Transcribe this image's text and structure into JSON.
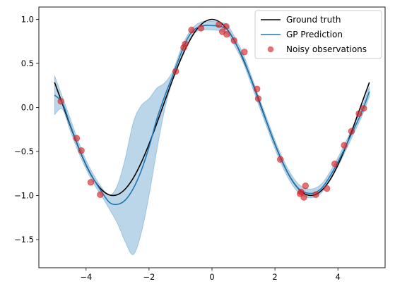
{
  "chart_data": {
    "type": "line",
    "title": "",
    "xlabel": "",
    "ylabel": "",
    "xlim": [
      -5.5,
      5.5
    ],
    "ylim": [
      -1.82,
      1.14
    ],
    "x_ticks": [
      -4,
      -2,
      0,
      2,
      4
    ],
    "y_ticks": [
      -1.5,
      -1.0,
      -0.5,
      0.0,
      0.5,
      1.0
    ],
    "x_tick_labels": [
      "−4",
      "−2",
      "0",
      "2",
      "4"
    ],
    "y_tick_labels": [
      "−1.5",
      "−1.0",
      "−0.5",
      "0.0",
      "0.5",
      "1.0"
    ],
    "grid": false,
    "legend_position": "top-right",
    "legend": [
      "Ground truth",
      "GP Prediction",
      "Noisy observations"
    ],
    "series": [
      {
        "name": "Ground truth",
        "kind": "line",
        "color": "#000000",
        "x": [
          -5.0,
          -4.75,
          -4.5,
          -4.25,
          -4.0,
          -3.75,
          -3.5,
          -3.25,
          -3.0,
          -2.75,
          -2.5,
          -2.25,
          -2.0,
          -1.75,
          -1.5,
          -1.25,
          -1.0,
          -0.75,
          -0.5,
          -0.25,
          0.0,
          0.25,
          0.5,
          0.75,
          1.0,
          1.25,
          1.5,
          1.75,
          2.0,
          2.25,
          2.5,
          2.75,
          3.0,
          3.25,
          3.5,
          3.75,
          4.0,
          4.25,
          4.5,
          4.75,
          5.0
        ],
        "y": [
          0.284,
          0.038,
          -0.211,
          -0.446,
          -0.654,
          -0.821,
          -0.936,
          -0.994,
          -0.99,
          -0.924,
          -0.801,
          -0.628,
          -0.416,
          -0.178,
          0.071,
          0.315,
          0.54,
          0.732,
          0.878,
          0.969,
          1.0,
          0.969,
          0.878,
          0.732,
          0.54,
          0.315,
          0.071,
          -0.178,
          -0.416,
          -0.628,
          -0.801,
          -0.924,
          -0.99,
          -0.994,
          -0.936,
          -0.821,
          -0.654,
          -0.446,
          -0.211,
          0.038,
          0.284
        ]
      },
      {
        "name": "GP Prediction",
        "kind": "line",
        "color": "#1f77b4",
        "x": [
          -5.0,
          -4.75,
          -4.5,
          -4.25,
          -4.0,
          -3.75,
          -3.5,
          -3.25,
          -3.0,
          -2.75,
          -2.5,
          -2.25,
          -2.0,
          -1.75,
          -1.5,
          -1.25,
          -1.0,
          -0.75,
          -0.5,
          -0.25,
          0.0,
          0.25,
          0.5,
          0.75,
          1.0,
          1.25,
          1.5,
          1.75,
          2.0,
          2.25,
          2.5,
          2.75,
          3.0,
          3.25,
          3.5,
          3.75,
          4.0,
          4.25,
          4.5,
          4.75,
          5.0
        ],
        "y": [
          0.14,
          0.05,
          -0.2,
          -0.44,
          -0.65,
          -0.82,
          -0.96,
          -1.08,
          -1.1,
          -1.05,
          -0.92,
          -0.72,
          -0.45,
          -0.13,
          0.13,
          0.36,
          0.6,
          0.8,
          0.9,
          0.93,
          0.93,
          0.92,
          0.88,
          0.73,
          0.55,
          0.31,
          0.06,
          -0.18,
          -0.42,
          -0.63,
          -0.8,
          -0.92,
          -0.97,
          -0.97,
          -0.91,
          -0.78,
          -0.62,
          -0.44,
          -0.25,
          -0.06,
          0.18
        ]
      },
      {
        "name": "",
        "kind": "band",
        "color": "#1f77b4",
        "opacity": 0.3,
        "x": [
          -5.0,
          -4.75,
          -4.5,
          -4.25,
          -4.0,
          -3.75,
          -3.5,
          -3.25,
          -3.0,
          -2.75,
          -2.5,
          -2.25,
          -2.0,
          -1.75,
          -1.5,
          -1.25,
          -1.0,
          -0.75,
          -0.5,
          -0.25,
          0.0,
          0.25,
          0.5,
          0.75,
          1.0,
          1.25,
          1.5,
          1.75,
          2.0,
          2.25,
          2.5,
          2.75,
          3.0,
          3.25,
          3.5,
          3.75,
          4.0,
          4.25,
          4.5,
          4.75,
          5.0
        ],
        "lower": [
          -0.08,
          -0.02,
          -0.27,
          -0.5,
          -0.7,
          -0.87,
          -1.01,
          -1.16,
          -1.32,
          -1.53,
          -1.67,
          -1.43,
          -1.0,
          -0.48,
          -0.02,
          0.31,
          0.55,
          0.76,
          0.86,
          0.88,
          0.88,
          0.87,
          0.83,
          0.68,
          0.5,
          0.26,
          0.01,
          -0.23,
          -0.47,
          -0.68,
          -0.85,
          -0.97,
          -1.02,
          -1.02,
          -0.96,
          -0.83,
          -0.67,
          -0.49,
          -0.3,
          -0.11,
          0.12
        ],
        "upper": [
          0.36,
          0.12,
          -0.13,
          -0.38,
          -0.6,
          -0.77,
          -0.91,
          -1.0,
          -0.88,
          -0.57,
          -0.17,
          0.02,
          0.1,
          0.22,
          0.28,
          0.41,
          0.65,
          0.84,
          0.94,
          0.98,
          0.98,
          0.97,
          0.93,
          0.78,
          0.6,
          0.36,
          0.11,
          -0.13,
          -0.37,
          -0.58,
          -0.75,
          -0.87,
          -0.92,
          -0.92,
          -0.86,
          -0.73,
          -0.57,
          -0.39,
          -0.2,
          -0.01,
          0.24
        ]
      },
      {
        "name": "Noisy observations",
        "kind": "scatter",
        "color": "#d62728",
        "opacity": 0.65,
        "x": [
          -4.8,
          -4.3,
          -4.15,
          -3.85,
          -3.55,
          -1.15,
          -0.9,
          -0.85,
          -0.65,
          -0.35,
          0.22,
          0.33,
          0.45,
          0.47,
          0.7,
          1.03,
          1.43,
          1.47,
          2.17,
          2.8,
          2.83,
          2.92,
          2.97,
          3.3,
          3.65,
          3.9,
          4.2,
          4.43,
          4.67,
          4.82
        ],
        "y": [
          0.07,
          -0.35,
          -0.49,
          -0.85,
          -0.99,
          0.41,
          0.68,
          0.72,
          0.88,
          0.9,
          0.94,
          0.86,
          0.92,
          0.83,
          0.76,
          0.63,
          0.21,
          0.1,
          -0.59,
          -0.98,
          -0.96,
          -1.02,
          -0.89,
          -0.99,
          -0.92,
          -0.64,
          -0.43,
          -0.27,
          -0.07,
          -0.01
        ]
      }
    ]
  }
}
